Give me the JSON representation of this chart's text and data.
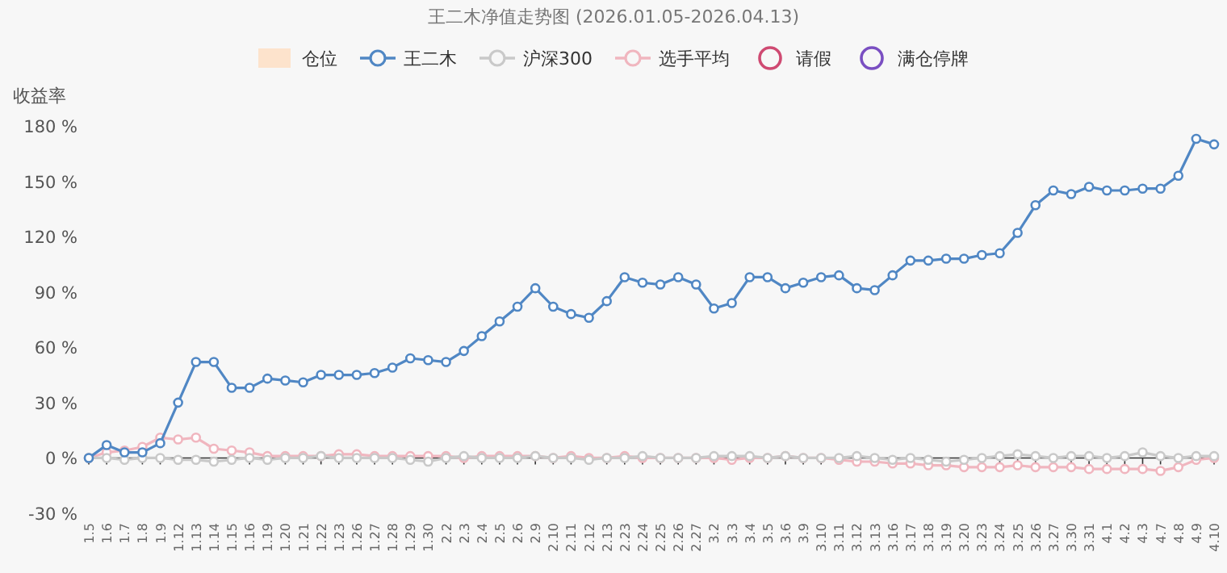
{
  "chart_data": {
    "type": "line",
    "title": "王二木净值走势图 (2026.01.05-2026.04.13)",
    "ylabel": "收益率",
    "categories": [
      "1.5",
      "1.6",
      "1.7",
      "1.8",
      "1.9",
      "1.12",
      "1.13",
      "1.14",
      "1.15",
      "1.16",
      "1.19",
      "1.20",
      "1.21",
      "1.22",
      "1.23",
      "1.26",
      "1.27",
      "1.28",
      "1.29",
      "1.30",
      "2.2",
      "2.3",
      "2.4",
      "2.5",
      "2.6",
      "2.9",
      "2.10",
      "2.11",
      "2.12",
      "2.13",
      "2.23",
      "2.24",
      "2.25",
      "2.26",
      "2.27",
      "3.2",
      "3.3",
      "3.4",
      "3.5",
      "3.6",
      "3.9",
      "3.10",
      "3.11",
      "3.12",
      "3.13",
      "3.16",
      "3.17",
      "3.18",
      "3.19",
      "3.20",
      "3.23",
      "3.24",
      "3.25",
      "3.26",
      "3.27",
      "3.30",
      "3.31",
      "4.1",
      "4.2",
      "4.3",
      "4.7",
      "4.8",
      "4.9",
      "4.10"
    ],
    "ylim": [
      -30,
      180
    ],
    "yticks": [
      {
        "value": -30,
        "label": "-30 %"
      },
      {
        "value": 0,
        "label": "0 %"
      },
      {
        "value": 30,
        "label": "30 %"
      },
      {
        "value": 60,
        "label": "60 %"
      },
      {
        "value": 90,
        "label": "90 %"
      },
      {
        "value": 120,
        "label": "120 %"
      },
      {
        "value": 150,
        "label": "150 %"
      },
      {
        "value": 180,
        "label": "180 %"
      }
    ],
    "legend": "top",
    "marker": "circle",
    "series": [
      {
        "name": "仓位",
        "type": "area",
        "color": "#fde3cc",
        "values": [
          null,
          null,
          null,
          null,
          null,
          null,
          null,
          null,
          null,
          null,
          null,
          null,
          null,
          null,
          null,
          null,
          null,
          null,
          null,
          null,
          null,
          null,
          null,
          null,
          null,
          null,
          null,
          null,
          null,
          null,
          null,
          null,
          null,
          null,
          null,
          null,
          null,
          null,
          null,
          null,
          null,
          null,
          null,
          null,
          null,
          null,
          null,
          null,
          null,
          null,
          null,
          null,
          null,
          null,
          null,
          null,
          null,
          null,
          null,
          null,
          null,
          null,
          null,
          null
        ]
      },
      {
        "name": "王二木",
        "color": "#5087c4",
        "values": [
          0,
          7,
          3,
          3,
          8,
          30,
          52,
          52,
          38,
          38,
          43,
          42,
          41,
          45,
          45,
          45,
          46,
          49,
          54,
          53,
          52,
          58,
          66,
          74,
          82,
          92,
          82,
          78,
          76,
          85,
          98,
          95,
          94,
          98,
          94,
          81,
          84,
          98,
          98,
          92,
          95,
          98,
          99,
          92,
          91,
          99,
          107,
          107,
          108,
          108,
          110,
          111,
          122,
          137,
          145,
          143,
          147,
          145,
          145,
          146,
          146,
          153,
          173,
          170
        ]
      },
      {
        "name": "沪深300",
        "color": "#c9c9c9",
        "values": [
          0,
          0,
          -1,
          0,
          0,
          -1,
          -1,
          -2,
          -1,
          0,
          -1,
          0,
          0,
          1,
          0,
          0,
          0,
          0,
          -1,
          -2,
          0,
          1,
          0,
          0,
          0,
          1,
          0,
          0,
          -1,
          0,
          0,
          1,
          0,
          0,
          0,
          1,
          1,
          1,
          0,
          1,
          0,
          0,
          0,
          1,
          0,
          -1,
          0,
          -1,
          -2,
          -1,
          0,
          1,
          2,
          1,
          0,
          1,
          1,
          0,
          1,
          3,
          1,
          0,
          1,
          1
        ]
      },
      {
        "name": "选手平均",
        "color": "#f0b6bf",
        "values": [
          0,
          3,
          4,
          6,
          11,
          10,
          11,
          5,
          4,
          3,
          1,
          1,
          1,
          1,
          2,
          2,
          1,
          1,
          1,
          1,
          1,
          0,
          1,
          1,
          1,
          1,
          0,
          1,
          0,
          0,
          1,
          0,
          0,
          0,
          0,
          0,
          -1,
          0,
          0,
          1,
          0,
          0,
          -1,
          -2,
          -2,
          -3,
          -3,
          -4,
          -4,
          -5,
          -5,
          -5,
          -4,
          -5,
          -5,
          -5,
          -6,
          -6,
          -6,
          -6,
          -7,
          -5,
          -1,
          0
        ]
      },
      {
        "name": "请假",
        "type": "scatter",
        "color": "#cf4a72",
        "values": [
          null,
          null,
          null,
          null,
          null,
          null,
          null,
          null,
          null,
          null,
          null,
          null,
          null,
          null,
          null,
          null,
          null,
          null,
          null,
          null,
          null,
          null,
          null,
          null,
          null,
          null,
          null,
          null,
          null,
          null,
          null,
          null,
          null,
          null,
          null,
          null,
          null,
          null,
          null,
          null,
          null,
          null,
          null,
          null,
          null,
          null,
          null,
          null,
          null,
          null,
          null,
          null,
          null,
          null,
          null,
          null,
          null,
          null,
          null,
          null,
          null,
          null,
          null,
          null
        ]
      },
      {
        "name": "满仓停牌",
        "type": "scatter",
        "color": "#7a4fc2",
        "values": [
          null,
          null,
          null,
          null,
          null,
          null,
          null,
          null,
          null,
          null,
          null,
          null,
          null,
          null,
          null,
          null,
          null,
          null,
          null,
          null,
          null,
          null,
          null,
          null,
          null,
          null,
          null,
          null,
          null,
          null,
          null,
          null,
          null,
          null,
          null,
          null,
          null,
          null,
          null,
          null,
          null,
          null,
          null,
          null,
          null,
          null,
          null,
          null,
          null,
          null,
          null,
          null,
          null,
          null,
          null,
          null,
          null,
          null,
          null,
          null,
          null,
          null,
          null,
          null
        ]
      }
    ]
  }
}
